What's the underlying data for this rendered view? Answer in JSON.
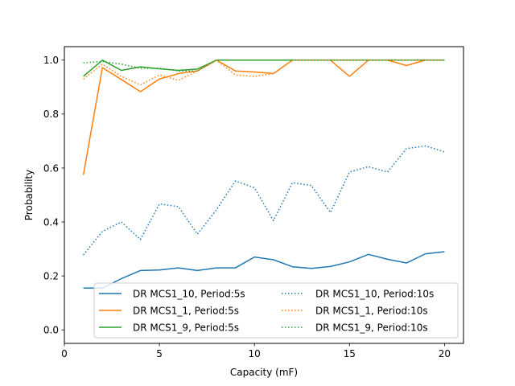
{
  "chart_data": {
    "type": "line",
    "title": "",
    "xlabel": "Capacity (mF)",
    "ylabel": "Probability",
    "xlim": [
      0,
      21
    ],
    "ylim": [
      -0.05,
      1.05
    ],
    "xticks": [
      0,
      5,
      10,
      15,
      20
    ],
    "yticks": [
      0.0,
      0.2,
      0.4,
      0.6,
      0.8,
      1.0
    ],
    "ytick_labels": [
      "0.0",
      "0.2",
      "0.4",
      "0.6",
      "0.8",
      "1.0"
    ],
    "grid": false,
    "legend_position": "lower-right",
    "x": [
      1,
      2,
      3,
      4,
      5,
      6,
      7,
      8,
      9,
      10,
      11,
      12,
      13,
      14,
      15,
      16,
      17,
      18,
      19,
      20
    ],
    "series": [
      {
        "name": "DR MCS1_10, Period:5s",
        "color": "#1f77b4",
        "linestyle": "solid",
        "values": [
          0.155,
          0.155,
          0.19,
          0.22,
          0.222,
          0.23,
          0.22,
          0.23,
          0.23,
          0.27,
          0.26,
          0.234,
          0.228,
          0.235,
          0.252,
          0.28,
          0.262,
          0.248,
          0.282,
          0.29
        ]
      },
      {
        "name": "DR MCS1_1, Period:5s",
        "color": "#ff7f0e",
        "linestyle": "solid",
        "values": [
          0.575,
          0.972,
          0.928,
          0.883,
          0.93,
          0.95,
          0.96,
          1.0,
          0.96,
          0.956,
          0.95,
          1.0,
          1.0,
          1.0,
          0.94,
          1.0,
          1.0,
          0.98,
          1.0,
          1.0
        ]
      },
      {
        "name": "DR MCS1_9, Period:5s",
        "color": "#2ca02c",
        "linestyle": "solid",
        "values": [
          0.94,
          1.0,
          0.962,
          0.975,
          0.968,
          0.962,
          0.967,
          1.0,
          1.0,
          1.0,
          1.0,
          1.0,
          1.0,
          1.0,
          1.0,
          1.0,
          1.0,
          1.0,
          1.0,
          1.0
        ]
      },
      {
        "name": "DR MCS1_10, Period:10s",
        "color": "#1f77b4",
        "linestyle": "dotted",
        "values": [
          0.278,
          0.365,
          0.4,
          0.335,
          0.467,
          0.457,
          0.355,
          0.445,
          0.552,
          0.527,
          0.405,
          0.546,
          0.535,
          0.435,
          0.585,
          0.605,
          0.585,
          0.672,
          0.682,
          0.66
        ]
      },
      {
        "name": "DR MCS1_1, Period:10s",
        "color": "#ff7f0e",
        "linestyle": "dotted",
        "values": [
          0.93,
          0.985,
          0.94,
          0.908,
          0.945,
          0.925,
          0.96,
          1.0,
          0.945,
          0.94,
          0.95,
          1.0,
          1.0,
          1.0,
          1.0,
          1.0,
          1.0,
          1.0,
          1.0,
          1.0
        ]
      },
      {
        "name": "DR MCS1_9, Period:10s",
        "color": "#2ca02c",
        "linestyle": "dotted",
        "values": [
          0.99,
          0.995,
          0.985,
          0.97,
          0.97,
          0.96,
          0.96,
          1.0,
          1.0,
          1.0,
          1.0,
          1.0,
          1.0,
          1.0,
          1.0,
          1.0,
          1.0,
          1.0,
          1.0,
          1.0
        ]
      }
    ]
  }
}
